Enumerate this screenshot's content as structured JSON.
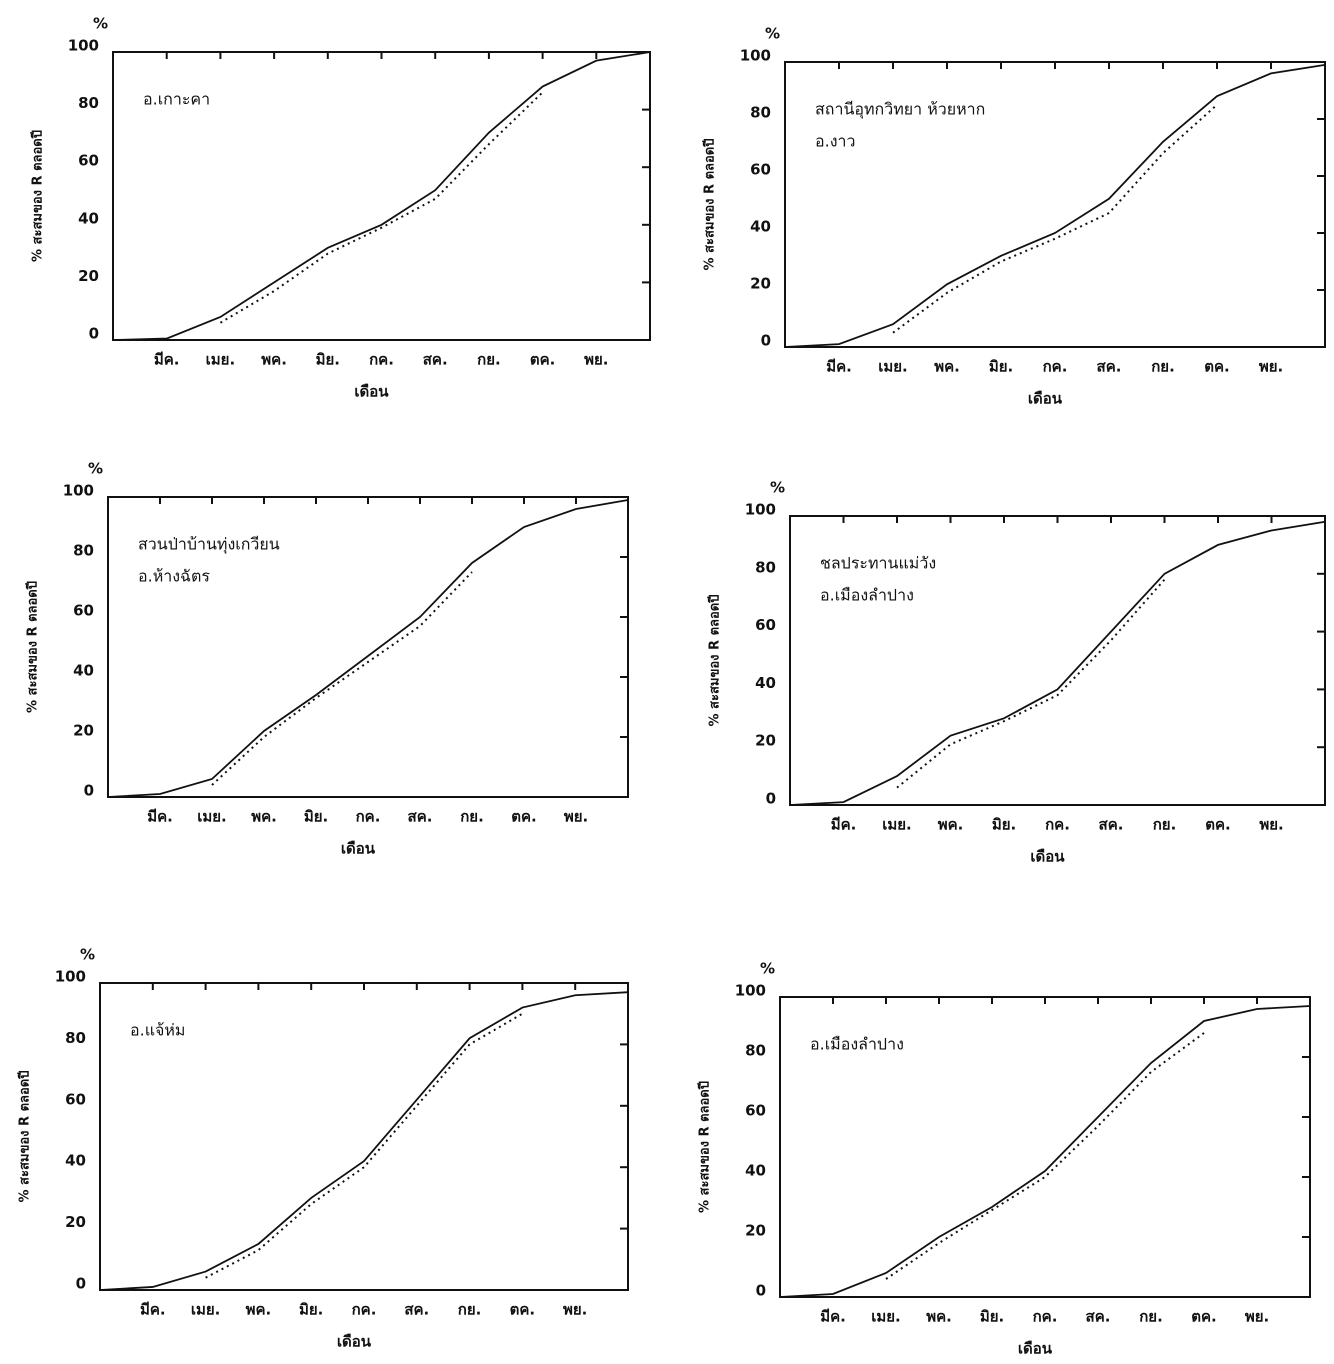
{
  "chart_data": [
    {
      "type": "line",
      "unit_label": "%",
      "ylabel": "% สะสมของ R ตลอดปี",
      "xlabel": "เดือน",
      "annotation": [
        "อ.เกาะคา"
      ],
      "categories": [
        null,
        "มีค.",
        "เมย.",
        "พค.",
        "มิย.",
        "กค.",
        "สค.",
        "กย.",
        "ตค.",
        "พย.",
        null
      ],
      "ylim": [
        0,
        100
      ],
      "yticks": [
        0,
        20,
        40,
        60,
        80,
        100
      ],
      "series": [
        {
          "color": "#111111",
          "style": "solid",
          "values": [
            0,
            0.5,
            8,
            20,
            32,
            40,
            52,
            72,
            88,
            97,
            100
          ]
        },
        {
          "color": "#111111",
          "style": "dotted",
          "values": [
            null,
            null,
            6,
            17,
            30,
            39,
            49,
            68,
            86,
            null,
            null
          ]
        }
      ]
    },
    {
      "type": "line",
      "unit_label": "%",
      "ylabel": "% สะสมของ R ตลอดปี",
      "xlabel": "เดือน",
      "annotation": [
        "สถานีอุทกวิทยา ห้วยหาก",
        "อ.งาว"
      ],
      "categories": [
        null,
        "มีค.",
        "เมย.",
        "พค.",
        "มิย.",
        "กค.",
        "สค.",
        "กย.",
        "ตค.",
        "พย.",
        null
      ],
      "ylim": [
        0,
        100
      ],
      "yticks": [
        0,
        20,
        40,
        60,
        80,
        100
      ],
      "series": [
        {
          "color": "#111111",
          "style": "solid",
          "values": [
            0,
            1,
            8,
            22,
            32,
            40,
            52,
            72,
            88,
            96,
            99
          ]
        },
        {
          "color": "#111111",
          "style": "dotted",
          "values": [
            null,
            null,
            5,
            19,
            30,
            38,
            47,
            68,
            85,
            null,
            null
          ]
        }
      ]
    },
    {
      "type": "line",
      "unit_label": "%",
      "ylabel": "% สะสมของ R ตลอดปี",
      "xlabel": "เดือน",
      "annotation": [
        "สวนป่าบ้านทุ่งเกวียน",
        "อ.ห้างฉัตร"
      ],
      "categories": [
        null,
        "มีค.",
        "เมย.",
        "พค.",
        "มิย.",
        "กค.",
        "สค.",
        "กย.",
        "ตค.",
        "พย.",
        null
      ],
      "ylim": [
        0,
        100
      ],
      "yticks": [
        0,
        20,
        40,
        60,
        80,
        100
      ],
      "series": [
        {
          "color": "#111111",
          "style": "solid",
          "values": [
            0,
            1,
            6,
            22,
            34,
            47,
            60,
            78,
            90,
            96,
            99
          ]
        },
        {
          "color": "#111111",
          "style": "dotted",
          "values": [
            null,
            null,
            4,
            20,
            33,
            45,
            57,
            75,
            null,
            null,
            null
          ]
        }
      ]
    },
    {
      "type": "line",
      "unit_label": "%",
      "ylabel": "% สะสมของ R ตลอดปี",
      "xlabel": "เดือน",
      "annotation": [
        "ชลประทานแม่วัง",
        "อ.เมืองลำปาง"
      ],
      "categories": [
        null,
        "มีค.",
        "เมย.",
        "พค.",
        "มิย.",
        "กค.",
        "สค.",
        "กย.",
        "ตค.",
        "พย.",
        null
      ],
      "ylim": [
        0,
        100
      ],
      "yticks": [
        0,
        20,
        40,
        60,
        80,
        100
      ],
      "series": [
        {
          "color": "#111111",
          "style": "solid",
          "values": [
            0,
            1,
            10,
            24,
            30,
            40,
            60,
            80,
            90,
            95,
            98
          ]
        },
        {
          "color": "#111111",
          "style": "dotted",
          "values": [
            null,
            null,
            6,
            21,
            29,
            38,
            57,
            78,
            null,
            null,
            null
          ]
        }
      ]
    },
    {
      "type": "line",
      "unit_label": "%",
      "ylabel": "% สะสมของ R ตลอดปี",
      "xlabel": "เดือน",
      "annotation": [
        "อ.แจ้ห่ม"
      ],
      "categories": [
        null,
        "มีค.",
        "เมย.",
        "พค.",
        "มิย.",
        "กค.",
        "สค.",
        "กย.",
        "ตค.",
        "พย.",
        null
      ],
      "ylim": [
        0,
        100
      ],
      "yticks": [
        0,
        20,
        40,
        60,
        80,
        100
      ],
      "series": [
        {
          "color": "#111111",
          "style": "solid",
          "values": [
            0,
            1,
            6,
            15,
            30,
            42,
            62,
            82,
            92,
            96,
            97
          ]
        },
        {
          "color": "#111111",
          "style": "dotted",
          "values": [
            null,
            null,
            4,
            13,
            28,
            40,
            60,
            80,
            90,
            null,
            null
          ]
        }
      ]
    },
    {
      "type": "line",
      "unit_label": "%",
      "ylabel": "% สะสมของ R ตลอดปี",
      "xlabel": "เดือน",
      "annotation": [
        "อ.เมืองลำปาง"
      ],
      "categories": [
        null,
        "มีค.",
        "เมย.",
        "พค.",
        "มิย.",
        "กค.",
        "สค.",
        "กย.",
        "ตค.",
        "พย.",
        null
      ],
      "ylim": [
        0,
        100
      ],
      "yticks": [
        0,
        20,
        40,
        60,
        80,
        100
      ],
      "series": [
        {
          "color": "#111111",
          "style": "solid",
          "values": [
            0,
            1,
            8,
            20,
            30,
            42,
            60,
            78,
            92,
            96,
            97
          ]
        },
        {
          "color": "#111111",
          "style": "dotted",
          "values": [
            null,
            null,
            6,
            18,
            29,
            40,
            57,
            75,
            88,
            null,
            null
          ]
        }
      ]
    }
  ]
}
